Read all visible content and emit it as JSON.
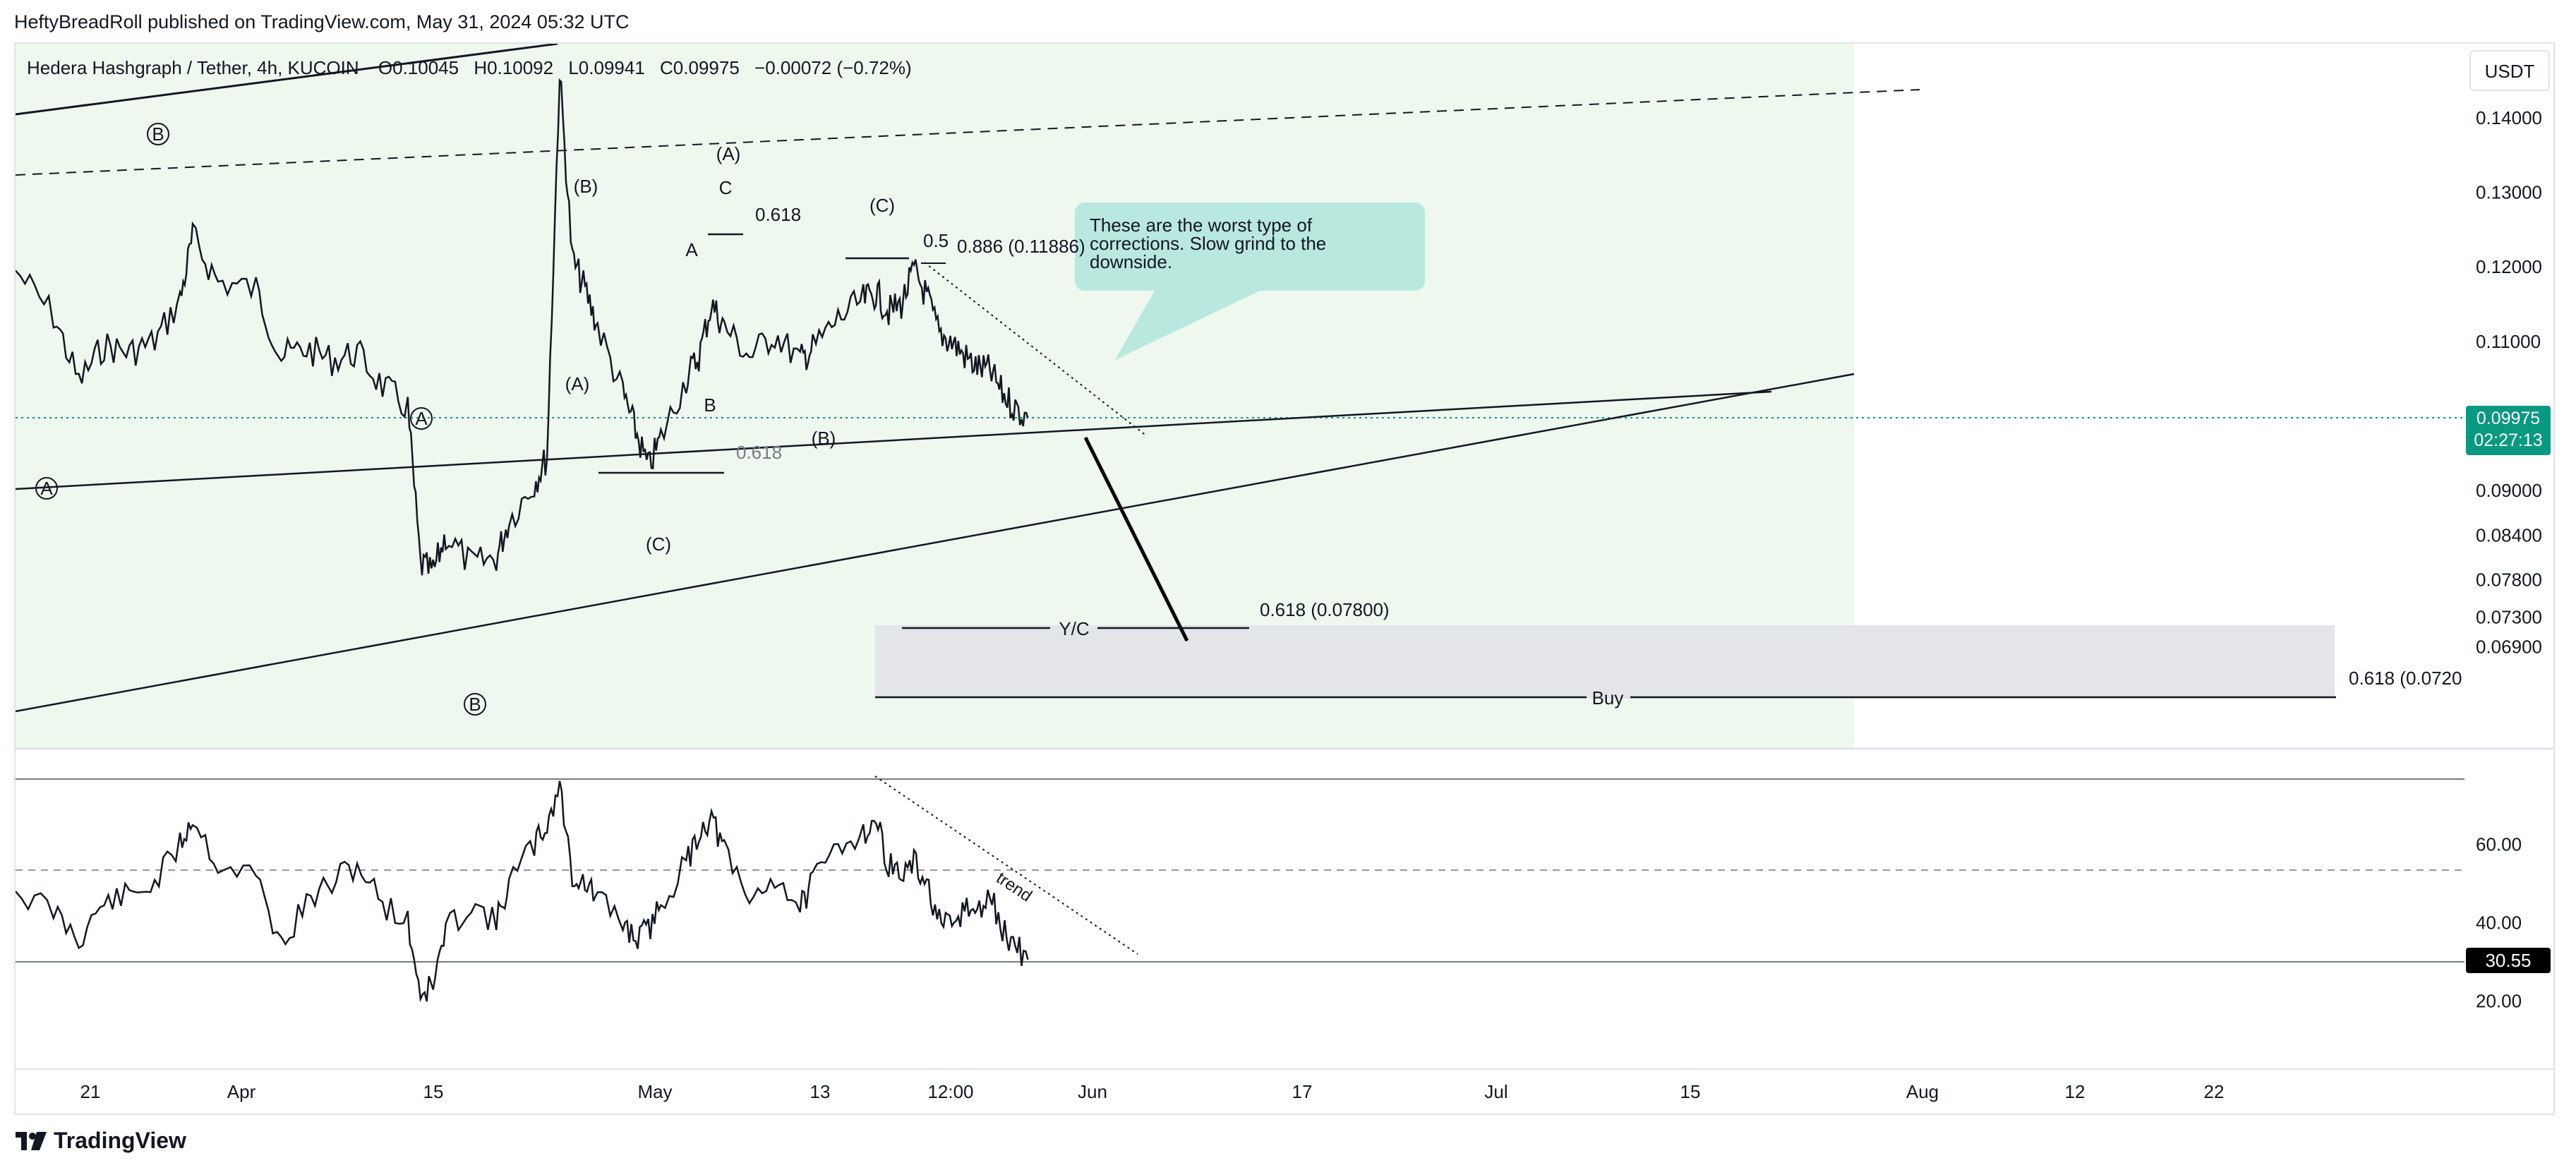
{
  "publisher_line": "HeftyBreadRoll published on TradingView.com, May 31, 2024 05:32 UTC",
  "brand": "TradingView",
  "colors": {
    "zone": "#e8f5e9",
    "buy_box": "#e4e5e8",
    "callout": "#b9e8de",
    "price_tag": "#089981",
    "rsi_tag": "#000000",
    "candle": "#131722"
  },
  "chart_data": {
    "type": "line",
    "header": {
      "symbol": "Hedera Hashgraph / Tether, 4h, KUCOIN",
      "open": "O0.10045",
      "high": "H0.10092",
      "low": "L0.09941",
      "close": "C0.09975",
      "change": "−0.00072 (−0.72%)"
    },
    "currency": "USDT",
    "price_axis": {
      "ticks": [
        "0.14000",
        "0.13000",
        "0.12000",
        "0.11000",
        "0.09000",
        "0.08400",
        "0.07800",
        "0.07300",
        "0.06900"
      ],
      "last_price": "0.09975",
      "countdown": "02:27:13"
    },
    "rsi_axis": {
      "ticks": [
        "60.00",
        "40.00",
        "20.00"
      ],
      "last_value": "30.55"
    },
    "time_axis": [
      "21",
      "Apr",
      "15",
      "May",
      "13",
      "12:00",
      "Jun",
      "17",
      "Jul",
      "15",
      "Aug",
      "12",
      "22"
    ],
    "price_series": [
      [
        "2024-03-12",
        0.1195
      ],
      [
        "2024-03-15",
        0.1135
      ],
      [
        "2024-03-17",
        0.1045
      ],
      [
        "2024-03-19",
        0.1095
      ],
      [
        "2024-03-21",
        0.1085
      ],
      [
        "2024-03-23",
        0.11
      ],
      [
        "2024-03-25",
        0.1155
      ],
      [
        "2024-03-26",
        0.124
      ],
      [
        "2024-03-28",
        0.118
      ],
      [
        "2024-03-31",
        0.117
      ],
      [
        "2024-04-02",
        0.108
      ],
      [
        "2024-04-04",
        0.109
      ],
      [
        "2024-04-06",
        0.1075
      ],
      [
        "2024-04-08",
        0.1085
      ],
      [
        "2024-04-10",
        0.104
      ],
      [
        "2024-04-12",
        0.101
      ],
      [
        "2024-04-13",
        0.08
      ],
      [
        "2024-04-14",
        0.079
      ],
      [
        "2024-04-15",
        0.084
      ],
      [
        "2024-04-17",
        0.08
      ],
      [
        "2024-04-19",
        0.081
      ],
      [
        "2024-04-20",
        0.086
      ],
      [
        "2024-04-22",
        0.091
      ],
      [
        "2024-04-23",
        0.0945
      ],
      [
        "2024-04-24",
        0.146
      ],
      [
        "2024-04-25",
        0.121
      ],
      [
        "2024-04-26",
        0.117
      ],
      [
        "2024-04-27",
        0.112
      ],
      [
        "2024-04-29",
        0.103
      ],
      [
        "2024-04-30",
        0.098
      ],
      [
        "2024-05-01",
        0.093
      ],
      [
        "2024-05-02",
        0.097
      ],
      [
        "2024-05-04",
        0.105
      ],
      [
        "2024-05-05",
        0.108
      ],
      [
        "2024-05-06",
        0.115
      ],
      [
        "2024-05-07",
        0.112
      ],
      [
        "2024-05-09",
        0.108
      ],
      [
        "2024-05-11",
        0.111
      ],
      [
        "2024-05-13",
        0.1075
      ],
      [
        "2024-05-14",
        0.109
      ],
      [
        "2024-05-16",
        0.113
      ],
      [
        "2024-05-18",
        0.1155
      ],
      [
        "2024-05-19",
        0.1165
      ],
      [
        "2024-05-20",
        0.114
      ],
      [
        "2024-05-21",
        0.115
      ],
      [
        "2024-05-22",
        0.1195
      ],
      [
        "2024-05-23",
        0.116
      ],
      [
        "2024-05-24",
        0.111
      ],
      [
        "2024-05-25",
        0.11
      ],
      [
        "2024-05-26",
        0.108
      ],
      [
        "2024-05-27",
        0.1065
      ],
      [
        "2024-05-28",
        0.106
      ],
      [
        "2024-05-29",
        0.103
      ],
      [
        "2024-05-30",
        0.101
      ],
      [
        "2024-05-31",
        0.09975
      ]
    ],
    "rsi_series": [
      [
        "2024-03-12",
        48
      ],
      [
        "2024-03-15",
        43
      ],
      [
        "2024-03-17",
        36
      ],
      [
        "2024-03-19",
        45
      ],
      [
        "2024-03-21",
        47
      ],
      [
        "2024-03-23",
        50
      ],
      [
        "2024-03-25",
        60
      ],
      [
        "2024-03-26",
        67
      ],
      [
        "2024-03-28",
        55
      ],
      [
        "2024-03-31",
        52
      ],
      [
        "2024-04-02",
        34
      ],
      [
        "2024-04-04",
        45
      ],
      [
        "2024-04-06",
        50
      ],
      [
        "2024-04-08",
        55
      ],
      [
        "2024-04-10",
        45
      ],
      [
        "2024-04-12",
        40
      ],
      [
        "2024-04-13",
        22
      ],
      [
        "2024-04-14",
        24
      ],
      [
        "2024-04-15",
        38
      ],
      [
        "2024-04-17",
        45
      ],
      [
        "2024-04-19",
        40
      ],
      [
        "2024-04-20",
        50
      ],
      [
        "2024-04-22",
        60
      ],
      [
        "2024-04-23",
        65
      ],
      [
        "2024-04-24",
        75
      ],
      [
        "2024-04-25",
        52
      ],
      [
        "2024-04-26",
        50
      ],
      [
        "2024-04-27",
        46
      ],
      [
        "2024-04-29",
        40
      ],
      [
        "2024-04-30",
        36
      ],
      [
        "2024-05-01",
        38
      ],
      [
        "2024-05-02",
        45
      ],
      [
        "2024-05-04",
        55
      ],
      [
        "2024-05-05",
        63
      ],
      [
        "2024-05-06",
        67
      ],
      [
        "2024-05-07",
        58
      ],
      [
        "2024-05-09",
        45
      ],
      [
        "2024-05-11",
        52
      ],
      [
        "2024-05-13",
        44
      ],
      [
        "2024-05-14",
        50
      ],
      [
        "2024-05-16",
        60
      ],
      [
        "2024-05-18",
        63
      ],
      [
        "2024-05-19",
        66
      ],
      [
        "2024-05-20",
        55
      ],
      [
        "2024-05-21",
        52
      ],
      [
        "2024-05-22",
        55
      ],
      [
        "2024-05-23",
        50
      ],
      [
        "2024-05-24",
        40
      ],
      [
        "2024-05-25",
        38
      ],
      [
        "2024-05-26",
        44
      ],
      [
        "2024-05-27",
        42
      ],
      [
        "2024-05-28",
        47
      ],
      [
        "2024-05-29",
        38
      ],
      [
        "2024-05-30",
        34
      ],
      [
        "2024-05-31",
        30.55
      ]
    ],
    "annotations": {
      "callout": [
        "These are the worst type of",
        "corrections. Slow grind to the",
        "downside."
      ],
      "fib_top_left": "0.618",
      "fib_top_mid": "0.5",
      "fib_top_right": "0.886 (0.11886)",
      "fib_low": "0.618",
      "yc_label": "Y/C",
      "yc_fib": "0.618 (0.07800)",
      "buy_label": "Buy",
      "buy_fib": "0.618 (0.0720",
      "trend_label": "trend",
      "waves": {
        "circle_b_top": "B",
        "circle_a_mid": "A",
        "circle_a_left": "A",
        "circle_b_low": "B",
        "paren_a_top": "(A)",
        "paren_b": "(B)",
        "paren_a_low": "(A)",
        "paren_c_low": "(C)",
        "paren_c_top": "(C)",
        "paren_b_mid": "(B)",
        "c_plain": "C",
        "a_plain": "A",
        "b_plain": "B"
      }
    }
  }
}
